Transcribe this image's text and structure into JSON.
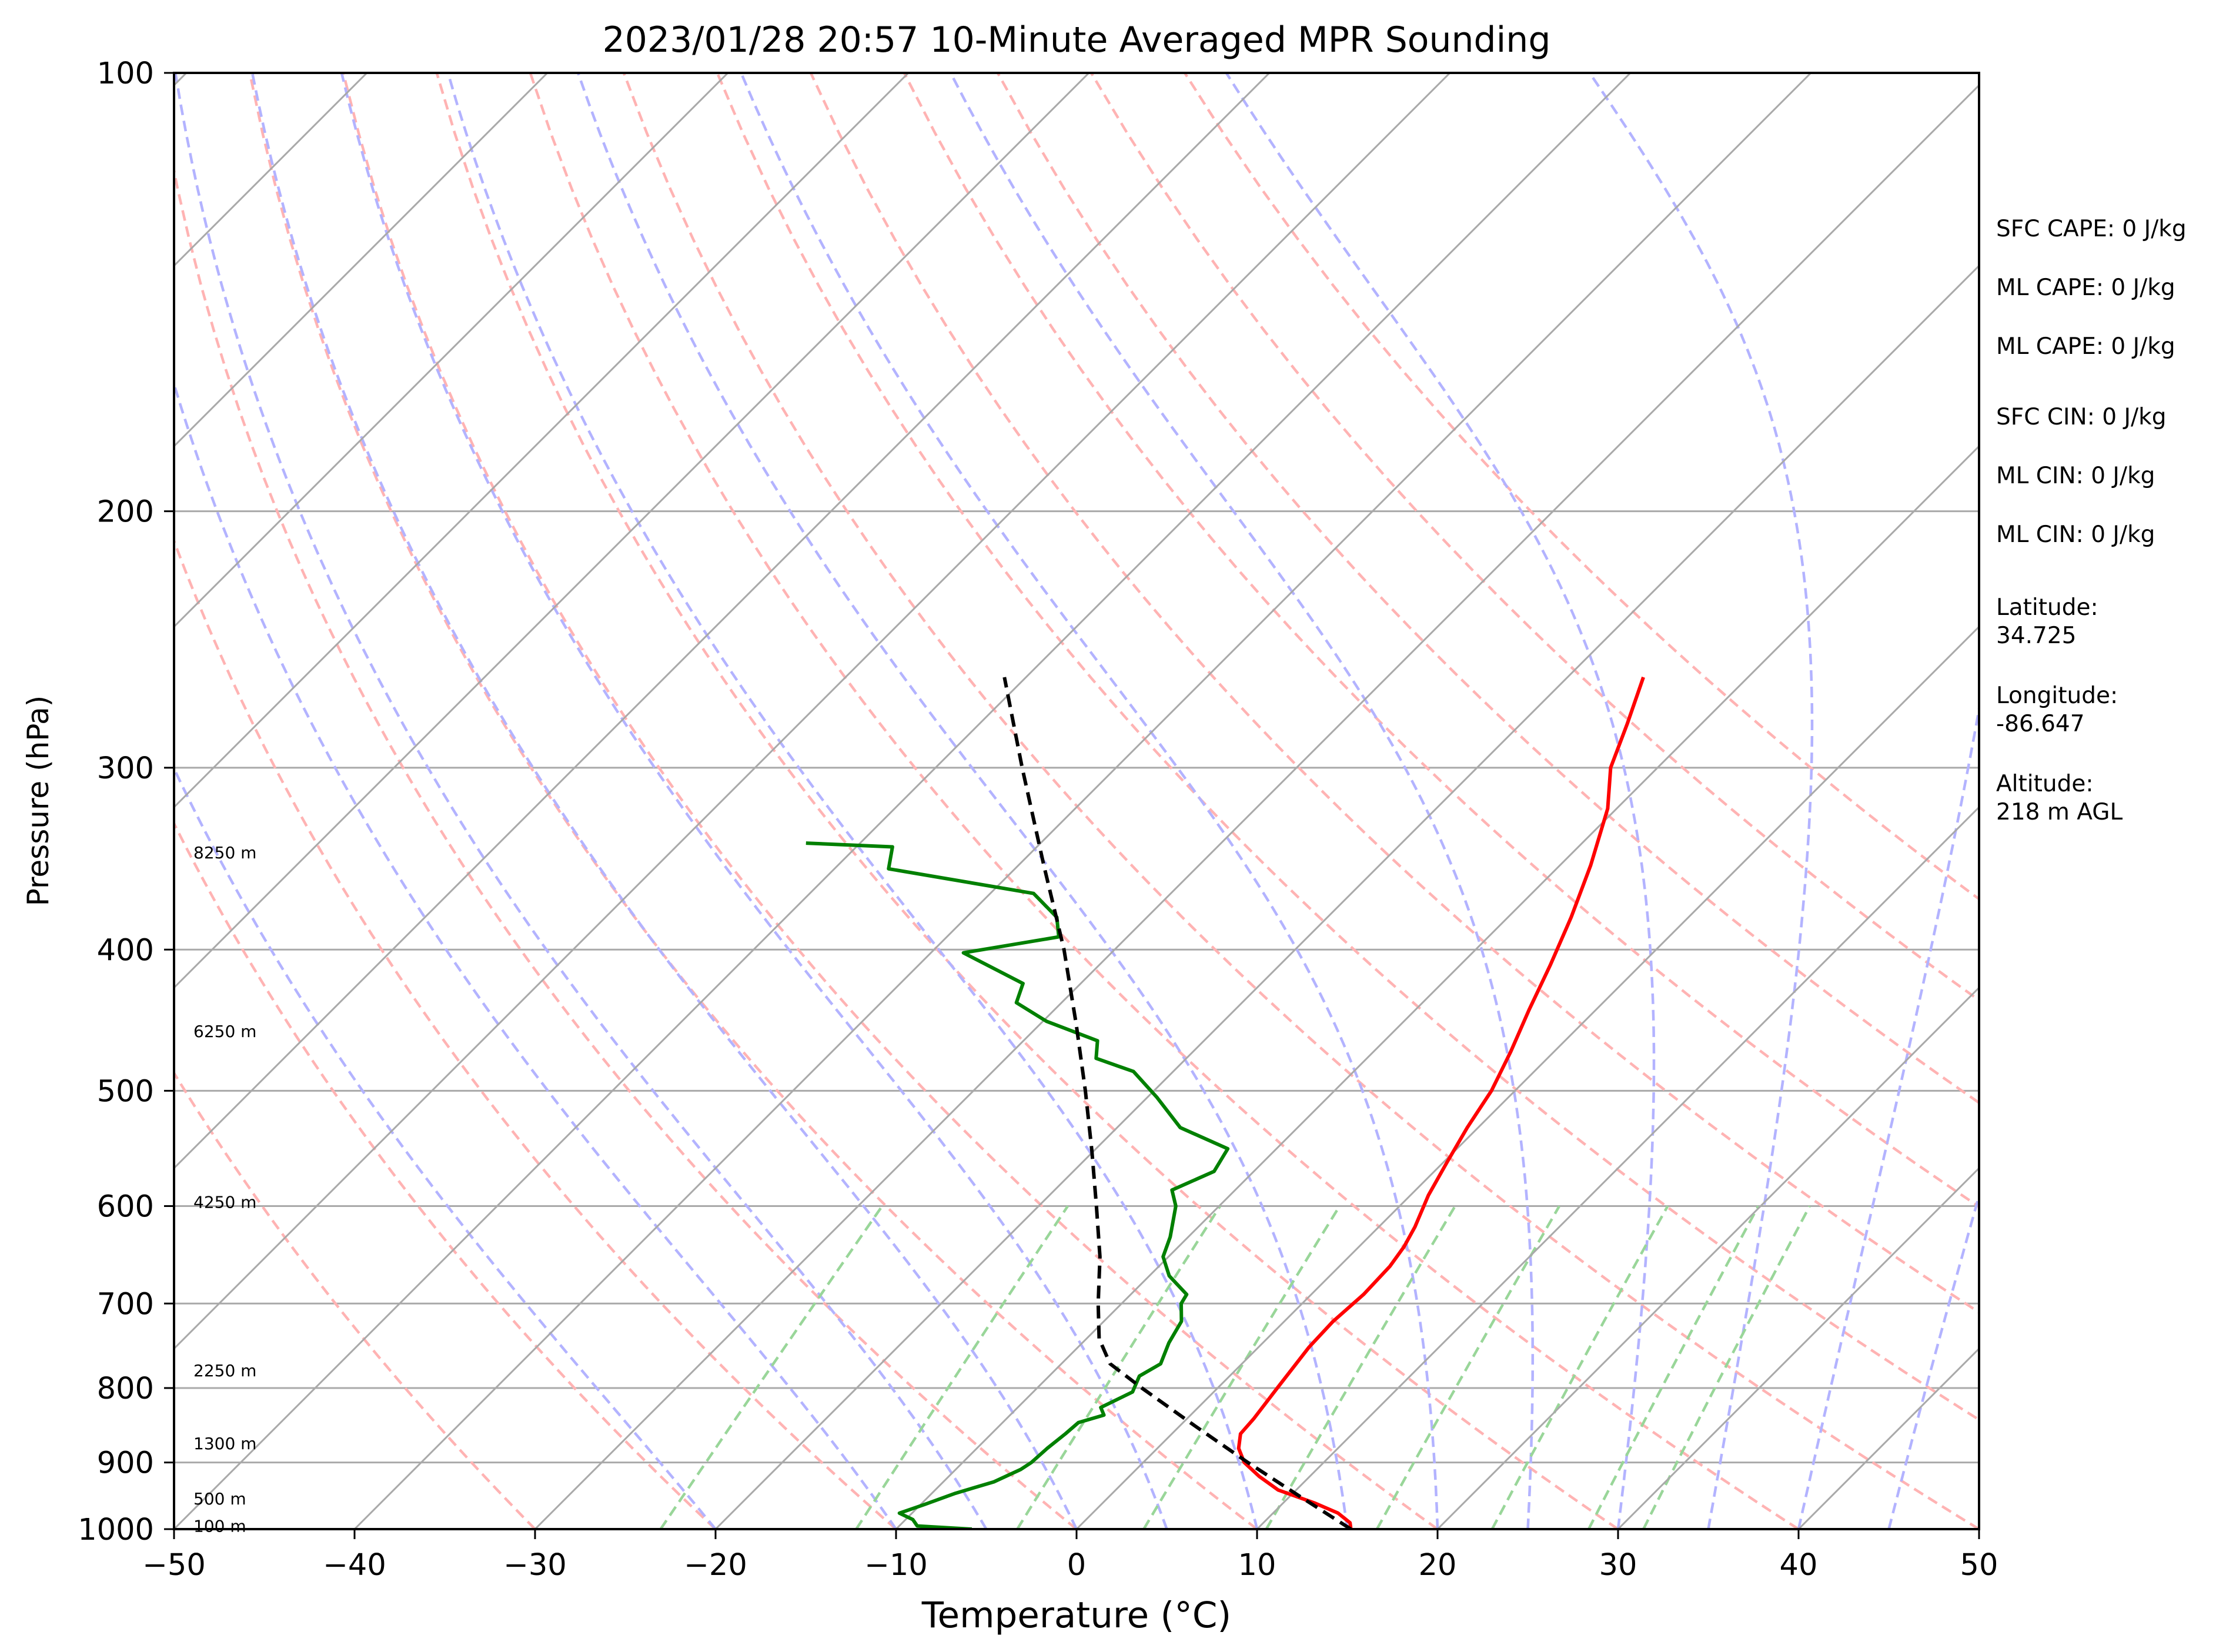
{
  "chart_data": {
    "type": "line",
    "title": "2023/01/28 20:57 10-Minute Averaged MPR Sounding",
    "xlabel": "Temperature (°C)",
    "ylabel": "Pressure (hPa)",
    "xlim": [
      -50,
      50
    ],
    "ylim": [
      1000,
      100
    ],
    "y_scale": "log",
    "skew": "skew-T log-P",
    "x_ticks": [
      {
        "value": -50,
        "label": "−50"
      },
      {
        "value": -40,
        "label": "−40"
      },
      {
        "value": -30,
        "label": "−30"
      },
      {
        "value": -20,
        "label": "−20"
      },
      {
        "value": -10,
        "label": "−10"
      },
      {
        "value": 0,
        "label": "0"
      },
      {
        "value": 10,
        "label": "10"
      },
      {
        "value": 20,
        "label": "20"
      },
      {
        "value": 30,
        "label": "30"
      },
      {
        "value": 40,
        "label": "40"
      },
      {
        "value": 50,
        "label": "50"
      }
    ],
    "y_ticks": [
      {
        "value": 100,
        "label": "100"
      },
      {
        "value": 200,
        "label": "200"
      },
      {
        "value": 300,
        "label": "300"
      },
      {
        "value": 400,
        "label": "400"
      },
      {
        "value": 500,
        "label": "500"
      },
      {
        "value": 600,
        "label": "600"
      },
      {
        "value": 700,
        "label": "700"
      },
      {
        "value": 800,
        "label": "800"
      },
      {
        "value": 900,
        "label": "900"
      },
      {
        "value": 1000,
        "label": "1000"
      }
    ],
    "series": [
      {
        "role": "temperature",
        "color": "#ff0000",
        "points": [
          {
            "p": 1000,
            "t": 15.2
          },
          {
            "p": 990,
            "t": 14.8
          },
          {
            "p": 975,
            "t": 13.6
          },
          {
            "p": 960,
            "t": 11.8
          },
          {
            "p": 940,
            "t": 9.0
          },
          {
            "p": 920,
            "t": 7.2
          },
          {
            "p": 900,
            "t": 5.6
          },
          {
            "p": 880,
            "t": 4.5
          },
          {
            "p": 860,
            "t": 3.8
          },
          {
            "p": 840,
            "t": 3.7
          },
          {
            "p": 800,
            "t": 3.3
          },
          {
            "p": 750,
            "t": 2.8
          },
          {
            "p": 720,
            "t": 2.7
          },
          {
            "p": 690,
            "t": 2.9
          },
          {
            "p": 660,
            "t": 2.8
          },
          {
            "p": 640,
            "t": 2.5
          },
          {
            "p": 620,
            "t": 2.0
          },
          {
            "p": 590,
            "t": 1.0
          },
          {
            "p": 560,
            "t": 0.2
          },
          {
            "p": 530,
            "t": -0.6
          },
          {
            "p": 500,
            "t": -1.3
          },
          {
            "p": 470,
            "t": -2.4
          },
          {
            "p": 440,
            "t": -3.7
          },
          {
            "p": 410,
            "t": -5.0
          },
          {
            "p": 380,
            "t": -6.5
          },
          {
            "p": 350,
            "t": -8.3
          },
          {
            "p": 320,
            "t": -10.5
          },
          {
            "p": 300,
            "t": -12.6
          },
          {
            "p": 280,
            "t": -14.1
          },
          {
            "p": 260,
            "t": -15.8
          }
        ]
      },
      {
        "role": "dewpoint",
        "color": "#008000",
        "points": [
          {
            "p": 1000,
            "t": -5.8
          },
          {
            "p": 995,
            "t": -9.0
          },
          {
            "p": 985,
            "t": -9.6
          },
          {
            "p": 975,
            "t": -10.7
          },
          {
            "p": 962,
            "t": -9.8
          },
          {
            "p": 945,
            "t": -8.7
          },
          {
            "p": 928,
            "t": -7.2
          },
          {
            "p": 910,
            "t": -6.4
          },
          {
            "p": 900,
            "t": -6.2
          },
          {
            "p": 880,
            "t": -6.1
          },
          {
            "p": 860,
            "t": -5.9
          },
          {
            "p": 845,
            "t": -5.8
          },
          {
            "p": 835,
            "t": -4.8
          },
          {
            "p": 825,
            "t": -5.4
          },
          {
            "p": 805,
            "t": -4.5
          },
          {
            "p": 785,
            "t": -5.0
          },
          {
            "p": 770,
            "t": -4.5
          },
          {
            "p": 745,
            "t": -5.2
          },
          {
            "p": 720,
            "t": -5.7
          },
          {
            "p": 700,
            "t": -6.7
          },
          {
            "p": 690,
            "t": -6.9
          },
          {
            "p": 670,
            "t": -8.9
          },
          {
            "p": 650,
            "t": -10.3
          },
          {
            "p": 630,
            "t": -11.0
          },
          {
            "p": 600,
            "t": -12.4
          },
          {
            "p": 585,
            "t": -13.5
          },
          {
            "p": 568,
            "t": -12.2
          },
          {
            "p": 548,
            "t": -12.7
          },
          {
            "p": 530,
            "t": -16.5
          },
          {
            "p": 505,
            "t": -19.5
          },
          {
            "p": 485,
            "t": -22.2
          },
          {
            "p": 475,
            "t": -25.0
          },
          {
            "p": 462,
            "t": -25.9
          },
          {
            "p": 448,
            "t": -29.8
          },
          {
            "p": 435,
            "t": -32.5
          },
          {
            "p": 422,
            "t": -33.2
          },
          {
            "p": 402,
            "t": -38.2
          },
          {
            "p": 392,
            "t": -33.8
          },
          {
            "p": 380,
            "t": -35.0
          },
          {
            "p": 366,
            "t": -37.6
          },
          {
            "p": 352,
            "t": -47.0
          },
          {
            "p": 340,
            "t": -48.0
          },
          {
            "p": 338,
            "t": -53.0
          }
        ]
      },
      {
        "role": "parcel",
        "color": "#000000",
        "style": "dashed",
        "points": [
          {
            "p": 1000,
            "t": 15.2
          },
          {
            "p": 950,
            "t": 10.6
          },
          {
            "p": 900,
            "t": 5.8
          },
          {
            "p": 850,
            "t": 0.9
          },
          {
            "p": 800,
            "t": -4.2
          },
          {
            "p": 770,
            "t": -7.3
          },
          {
            "p": 740,
            "t": -9.3
          },
          {
            "p": 700,
            "t": -11.3
          },
          {
            "p": 650,
            "t": -13.8
          },
          {
            "p": 600,
            "t": -16.8
          },
          {
            "p": 550,
            "t": -20.1
          },
          {
            "p": 500,
            "t": -23.8
          },
          {
            "p": 450,
            "t": -28.0
          },
          {
            "p": 400,
            "t": -32.8
          },
          {
            "p": 350,
            "t": -38.6
          },
          {
            "p": 300,
            "t": -45.2
          },
          {
            "p": 260,
            "t": -51.2
          }
        ]
      }
    ],
    "reference_lines": {
      "isotherm_color": "#a9a9a9",
      "dry_adiabat_color": "#ffb3b3",
      "moist_adiabat_color": "#b3b3ff",
      "mixing_ratio_color": "#99d699",
      "isotherms_c": [
        -130,
        -120,
        -110,
        -100,
        -90,
        -80,
        -70,
        -60,
        -50,
        -40,
        -30,
        -20,
        -10,
        0,
        10,
        20,
        30,
        40,
        50
      ],
      "dry_adiabats_c": [
        -30,
        -20,
        -10,
        0,
        10,
        20,
        30,
        40,
        50,
        60,
        70,
        80,
        90,
        100,
        110
      ],
      "moist_adiabats_c": [
        -20,
        -10,
        -5,
        0,
        5,
        10,
        15,
        20,
        25,
        30,
        35,
        40,
        45
      ],
      "mixing_ratios_gkg": [
        0.6,
        1.5,
        3,
        5,
        8,
        12,
        18,
        25,
        30
      ]
    },
    "height_labels": [
      {
        "text": "100 m",
        "p": 995
      },
      {
        "text": "500 m",
        "p": 953
      },
      {
        "text": "1300 m",
        "p": 873
      },
      {
        "text": "2250 m",
        "p": 778
      },
      {
        "text": "4250 m",
        "p": 596
      },
      {
        "text": "6250 m",
        "p": 455
      },
      {
        "text": "8250 m",
        "p": 343
      }
    ]
  },
  "stats": [
    {
      "label": "SFC CAPE: 0 J/kg"
    },
    {
      "label": "ML CAPE: 0 J/kg"
    },
    {
      "label": "ML CAPE: 0 J/kg"
    },
    {
      "label": "SFC CIN: 0 J/kg"
    },
    {
      "label": "ML CIN: 0 J/kg"
    },
    {
      "label": "ML CIN: 0 J/kg"
    },
    {
      "label": "Latitude:",
      "value": "34.725"
    },
    {
      "label": "Longitude:",
      "value": "-86.647"
    },
    {
      "label": "Altitude:",
      "value": "218 m AGL"
    }
  ]
}
